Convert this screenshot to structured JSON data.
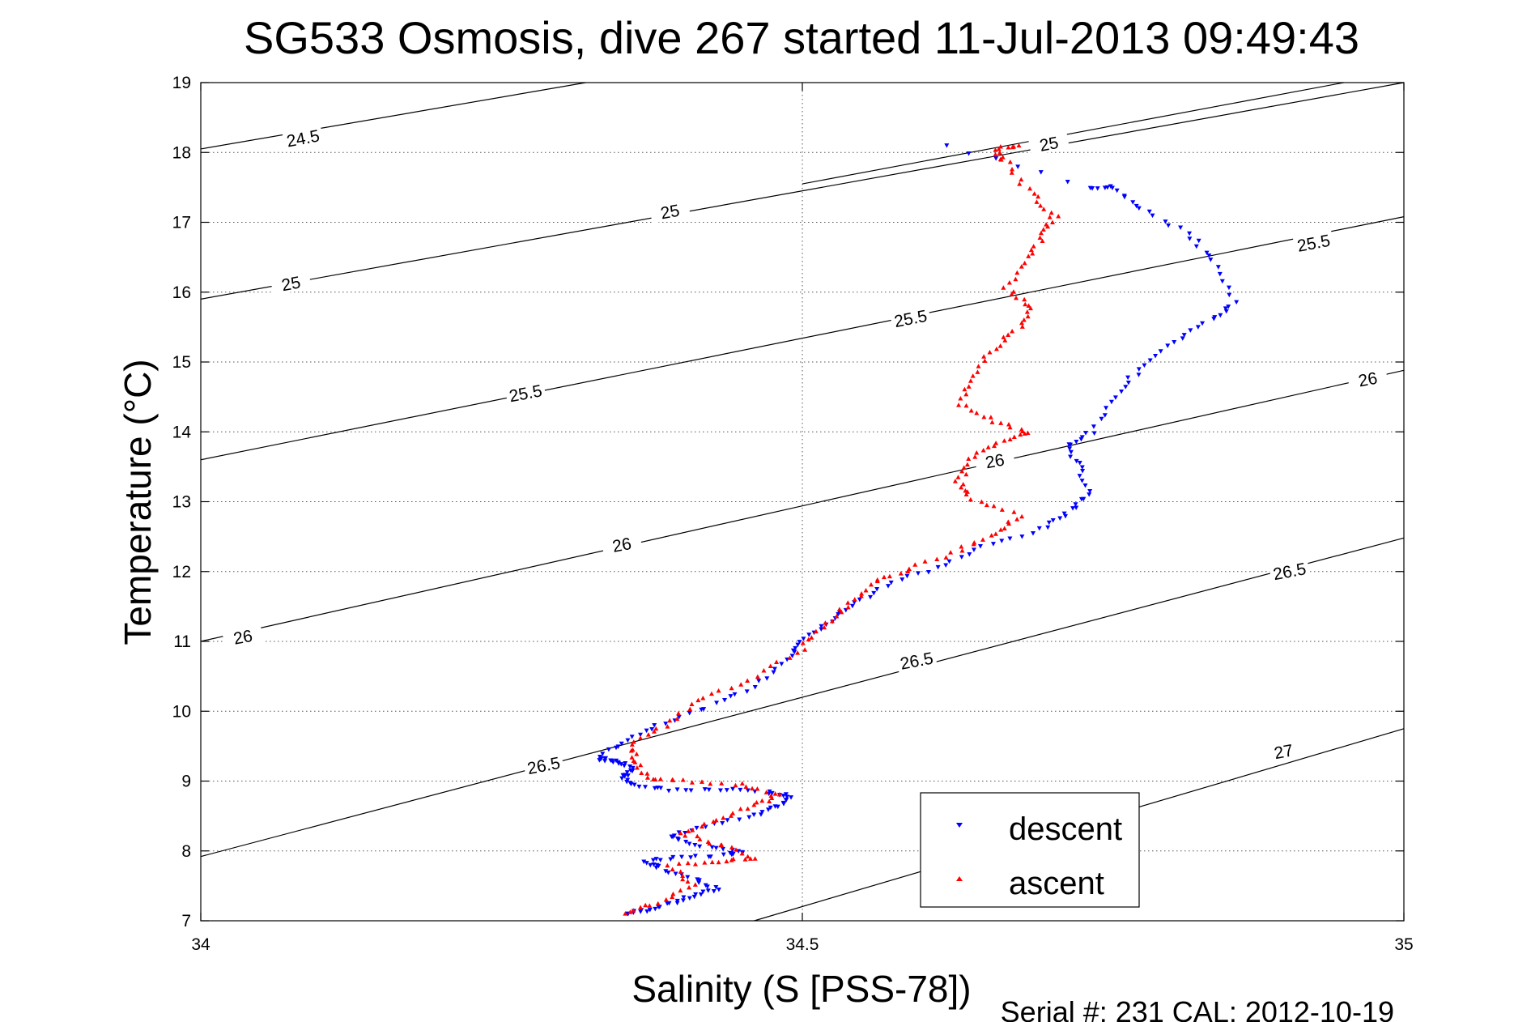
{
  "chart_data": {
    "type": "scatter",
    "title": "SG533 Osmosis, dive 267 started 11-Jul-2013 09:49:43",
    "xlabel": "Salinity (S [PSS-78])",
    "ylabel": "Temperature (°C)",
    "footer": "Serial #: 231  CAL: 2012-10-19",
    "xlim": [
      34,
      35
    ],
    "ylim": [
      7,
      19
    ],
    "xticks": [
      "34",
      "34.5",
      "35"
    ],
    "yticks": [
      "7",
      "8",
      "9",
      "10",
      "11",
      "12",
      "13",
      "14",
      "15",
      "16",
      "17",
      "18",
      "19"
    ],
    "grid": true,
    "legend_position": "lower-right",
    "contours": [
      {
        "level": 24.5,
        "p1": [
          34,
          18.05
        ],
        "p2": [
          34.32,
          19
        ]
      },
      {
        "level": 25,
        "p1": [
          34,
          15.9
        ],
        "p2": [
          35,
          19
        ]
      },
      {
        "level": 25,
        "p1": [
          34.5,
          17.55
        ],
        "p2": [
          34.95,
          19
        ]
      },
      {
        "level": 25.5,
        "p1": [
          34,
          13.6
        ],
        "p2": [
          35,
          17.08
        ]
      },
      {
        "level": 26,
        "p1": [
          34,
          11.0
        ],
        "p2": [
          35,
          14.88
        ]
      },
      {
        "level": 26.5,
        "p1": [
          34,
          7.92
        ],
        "p2": [
          35,
          12.48
        ]
      },
      {
        "level": 27,
        "p1": [
          34.46,
          7
        ],
        "p2": [
          35,
          9.75
        ]
      }
    ],
    "contour_labels": [
      {
        "text": "24.5",
        "x": 34.085,
        "y": 18.2
      },
      {
        "text": "25",
        "x": 34.075,
        "y": 16.12
      },
      {
        "text": "25",
        "x": 34.39,
        "y": 17.15
      },
      {
        "text": "25",
        "x": 34.705,
        "y": 18.12
      },
      {
        "text": "25.5",
        "x": 34.27,
        "y": 14.55
      },
      {
        "text": "25.5",
        "x": 34.59,
        "y": 15.62
      },
      {
        "text": "25.5",
        "x": 34.925,
        "y": 16.7
      },
      {
        "text": "26",
        "x": 34.035,
        "y": 11.06
      },
      {
        "text": "26",
        "x": 34.35,
        "y": 12.38
      },
      {
        "text": "26",
        "x": 34.66,
        "y": 13.58
      },
      {
        "text": "26",
        "x": 34.97,
        "y": 14.75
      },
      {
        "text": "26.5",
        "x": 34.285,
        "y": 9.22
      },
      {
        "text": "26.5",
        "x": 34.595,
        "y": 10.72
      },
      {
        "text": "26.5",
        "x": 34.905,
        "y": 12.0
      },
      {
        "text": "27",
        "x": 34.9,
        "y": 9.42
      }
    ],
    "series": [
      {
        "name": "descent",
        "color": "#0000ff",
        "marker": "triangle-down",
        "points": [
          [
            34.355,
            7.1
          ],
          [
            34.37,
            7.15
          ],
          [
            34.39,
            7.25
          ],
          [
            34.41,
            7.35
          ],
          [
            34.43,
            7.45
          ],
          [
            34.41,
            7.6
          ],
          [
            34.38,
            7.75
          ],
          [
            34.37,
            7.85
          ],
          [
            34.4,
            7.9
          ],
          [
            34.44,
            7.95
          ],
          [
            34.45,
            8.0
          ],
          [
            34.41,
            8.1
          ],
          [
            34.39,
            8.2
          ],
          [
            34.42,
            8.35
          ],
          [
            34.46,
            8.5
          ],
          [
            34.48,
            8.65
          ],
          [
            34.49,
            8.78
          ],
          [
            34.47,
            8.85
          ],
          [
            34.43,
            8.88
          ],
          [
            34.39,
            8.88
          ],
          [
            34.36,
            8.95
          ],
          [
            34.35,
            9.05
          ],
          [
            34.36,
            9.15
          ],
          [
            34.35,
            9.25
          ],
          [
            34.34,
            9.3
          ],
          [
            34.33,
            9.32
          ],
          [
            34.35,
            9.55
          ],
          [
            34.38,
            9.8
          ],
          [
            34.42,
            10.05
          ],
          [
            34.46,
            10.35
          ],
          [
            34.49,
            10.75
          ],
          [
            34.5,
            11.0
          ],
          [
            34.52,
            11.25
          ],
          [
            34.54,
            11.5
          ],
          [
            34.57,
            11.8
          ],
          [
            34.61,
            12.05
          ],
          [
            34.65,
            12.35
          ],
          [
            34.7,
            12.6
          ],
          [
            34.72,
            12.85
          ],
          [
            34.74,
            13.1
          ],
          [
            34.73,
            13.5
          ],
          [
            34.72,
            13.8
          ],
          [
            34.74,
            14.0
          ],
          [
            34.76,
            14.5
          ],
          [
            34.78,
            14.9
          ],
          [
            34.81,
            15.3
          ],
          [
            34.84,
            15.6
          ],
          [
            34.86,
            15.85
          ],
          [
            34.84,
            16.45
          ],
          [
            34.82,
            16.85
          ],
          [
            34.78,
            17.2
          ],
          [
            34.76,
            17.5
          ],
          [
            34.74,
            17.5
          ],
          [
            34.62,
            18.1
          ]
        ]
      },
      {
        "name": "ascent",
        "color": "#ff0000",
        "marker": "triangle-up",
        "points": [
          [
            34.35,
            7.12
          ],
          [
            34.38,
            7.25
          ],
          [
            34.41,
            7.5
          ],
          [
            34.39,
            7.8
          ],
          [
            34.43,
            7.85
          ],
          [
            34.46,
            7.9
          ],
          [
            34.43,
            8.1
          ],
          [
            34.4,
            8.25
          ],
          [
            34.43,
            8.45
          ],
          [
            34.46,
            8.65
          ],
          [
            34.48,
            8.8
          ],
          [
            34.45,
            8.95
          ],
          [
            34.4,
            9.0
          ],
          [
            34.37,
            9.05
          ],
          [
            34.36,
            9.3
          ],
          [
            34.36,
            9.55
          ],
          [
            34.39,
            9.85
          ],
          [
            34.42,
            10.2
          ],
          [
            34.46,
            10.5
          ],
          [
            34.5,
            10.9
          ],
          [
            34.52,
            11.25
          ],
          [
            34.54,
            11.55
          ],
          [
            34.56,
            11.85
          ],
          [
            34.59,
            12.05
          ],
          [
            34.63,
            12.3
          ],
          [
            34.66,
            12.55
          ],
          [
            34.68,
            12.8
          ],
          [
            34.64,
            13.05
          ],
          [
            34.63,
            13.3
          ],
          [
            34.64,
            13.6
          ],
          [
            34.66,
            13.85
          ],
          [
            34.69,
            14.0
          ],
          [
            34.66,
            14.15
          ],
          [
            34.63,
            14.4
          ],
          [
            34.64,
            14.8
          ],
          [
            34.66,
            15.2
          ],
          [
            34.68,
            15.5
          ],
          [
            34.69,
            15.8
          ],
          [
            34.67,
            16.05
          ],
          [
            34.69,
            16.5
          ],
          [
            34.7,
            16.85
          ],
          [
            34.71,
            17.1
          ],
          [
            34.69,
            17.4
          ],
          [
            34.67,
            17.85
          ],
          [
            34.66,
            18.05
          ],
          [
            34.68,
            18.1
          ]
        ]
      }
    ]
  }
}
